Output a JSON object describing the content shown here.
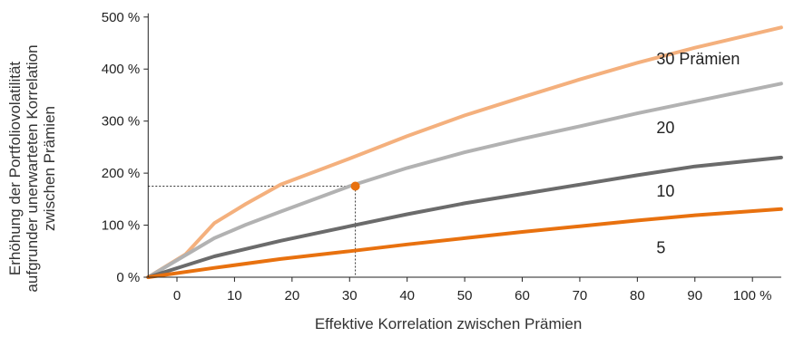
{
  "chart_data": {
    "type": "line",
    "xlabel": "Effektive Korrelation zwischen Prämien",
    "ylabel": [
      "Erhöhung der Portfoliovolatilität",
      "aufgrunder unerwarteten Korrelation",
      "zwischen Prämien"
    ],
    "xlim": [
      -5,
      105
    ],
    "ylim": [
      0,
      500
    ],
    "x_ticks": [
      0,
      10,
      20,
      30,
      40,
      50,
      60,
      70,
      80,
      90,
      100
    ],
    "x_tick_labels": [
      "0",
      "10",
      "20",
      "30",
      "40",
      "50",
      "60",
      "70",
      "80",
      "90",
      "100 %"
    ],
    "y_ticks": [
      0,
      100,
      200,
      300,
      400,
      500
    ],
    "y_tick_labels": [
      "0 %",
      "100 %",
      "200 %",
      "300 %",
      "400 %",
      "500 %"
    ],
    "grid": false,
    "series": [
      {
        "name": "30 Prämien",
        "color": "#f4b07d",
        "points": [
          [
            -5,
            0
          ],
          [
            1.5,
            44
          ],
          [
            6.5,
            104
          ],
          [
            12,
            141
          ],
          [
            18,
            178
          ],
          [
            30,
            228
          ],
          [
            40,
            271
          ],
          [
            50,
            311
          ],
          [
            60,
            346
          ],
          [
            70,
            380
          ],
          [
            80,
            412
          ],
          [
            90,
            441
          ],
          [
            105,
            480
          ]
        ]
      },
      {
        "name": "20",
        "color": "#b2b2b2",
        "points": [
          [
            -5,
            0
          ],
          [
            6.5,
            75
          ],
          [
            12,
            101
          ],
          [
            18,
            126
          ],
          [
            30,
            175
          ],
          [
            40,
            210
          ],
          [
            50,
            240
          ],
          [
            60,
            266
          ],
          [
            70,
            290
          ],
          [
            80,
            315
          ],
          [
            90,
            338
          ],
          [
            105,
            372
          ]
        ]
      },
      {
        "name": "10",
        "color": "#6b6b6b",
        "points": [
          [
            -5,
            0
          ],
          [
            6.5,
            40
          ],
          [
            18,
            70
          ],
          [
            30,
            98
          ],
          [
            40,
            121
          ],
          [
            50,
            142
          ],
          [
            60,
            160
          ],
          [
            70,
            178
          ],
          [
            80,
            196
          ],
          [
            90,
            213
          ],
          [
            105,
            230
          ]
        ]
      },
      {
        "name": "5",
        "color": "#e8710f",
        "points": [
          [
            -5,
            0
          ],
          [
            6.5,
            18
          ],
          [
            18,
            35
          ],
          [
            30,
            50
          ],
          [
            40,
            63
          ],
          [
            50,
            75
          ],
          [
            60,
            87
          ],
          [
            70,
            98
          ],
          [
            80,
            109
          ],
          [
            90,
            119
          ],
          [
            105,
            131
          ]
        ]
      }
    ],
    "highlight": {
      "x": 31,
      "y": 175,
      "color": "#e8710f",
      "dashed_guides": true
    }
  }
}
